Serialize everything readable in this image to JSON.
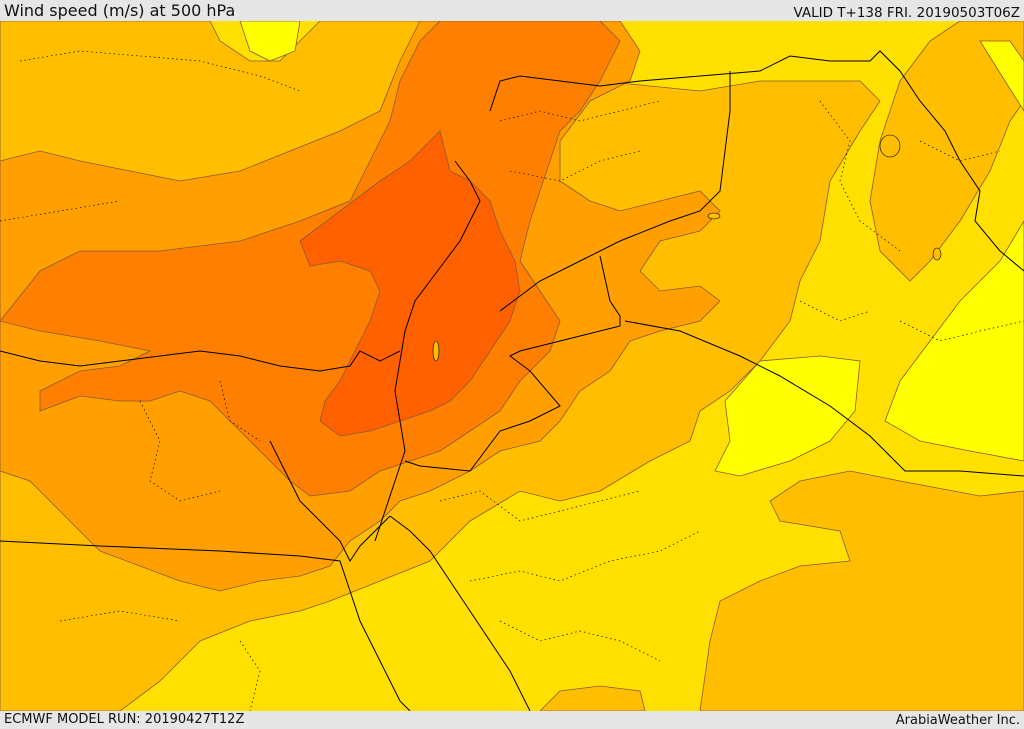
{
  "header": {
    "title": "Wind speed (m/s) at 500 hPa",
    "valid": "VALID T+138 FRI. 20190503T06Z"
  },
  "footer": {
    "model_run": "ECMWF MODEL RUN: 20190427T12Z",
    "credit": "ArabiaWeather Inc."
  },
  "palette": {
    "band_lowest": "#ffff00",
    "band_low": "#ffe000",
    "band_mid": "#ffbf00",
    "band_high": "#ff9f00",
    "band_higher": "#ff8000",
    "band_highest": "#ff6000",
    "contour_line": "#8a5a3a",
    "border_line": "#000000"
  }
}
